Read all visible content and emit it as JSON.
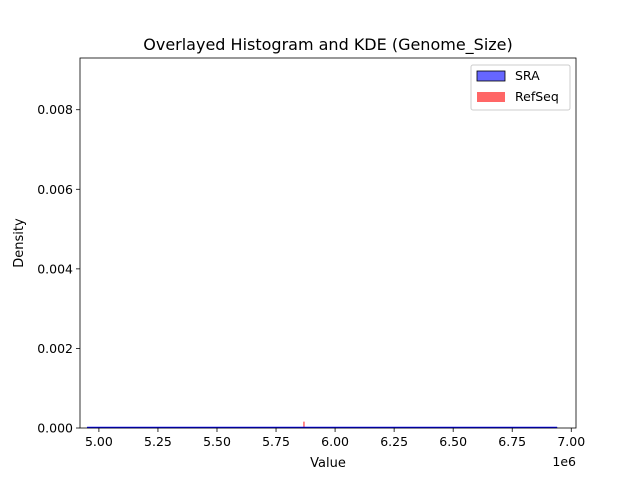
{
  "chart_data": {
    "type": "histogram",
    "title": "Overlayed Histogram and KDE (Genome_Size)",
    "xlabel": "Value",
    "ylabel": "Density",
    "x_offset_label": "1e6",
    "xlim": [
      4920000,
      7020000
    ],
    "ylim": [
      0,
      0.0093
    ],
    "x_ticks": [
      5000000,
      5250000,
      5500000,
      5750000,
      6000000,
      6250000,
      6500000,
      6750000,
      7000000
    ],
    "x_tick_labels": [
      "5.00",
      "5.25",
      "5.50",
      "5.75",
      "6.00",
      "6.25",
      "6.50",
      "6.75",
      "7.00"
    ],
    "y_ticks": [
      0,
      0.002,
      0.004,
      0.006,
      0.008
    ],
    "y_tick_labels": [
      "0.000",
      "0.002",
      "0.004",
      "0.006",
      "0.008"
    ],
    "grid": false,
    "legend_position": "top-right",
    "series": [
      {
        "name": "SRA",
        "kind": "histogram",
        "color": "#0000ff",
        "bins": [
          {
            "start": 4950000,
            "end": 6940000,
            "density": 5e-07
          }
        ],
        "kde": {
          "x": [
            4950000,
            5450000,
            5950000,
            6450000,
            6940000
          ],
          "y": [
            5e-07,
            5e-07,
            5e-07,
            5e-07,
            5e-07
          ]
        }
      },
      {
        "name": "RefSeq",
        "kind": "histogram",
        "color": "#ff0000",
        "bins": [
          {
            "start": 5865000,
            "end": 5870000,
            "density": 0.00016
          }
        ]
      }
    ]
  }
}
